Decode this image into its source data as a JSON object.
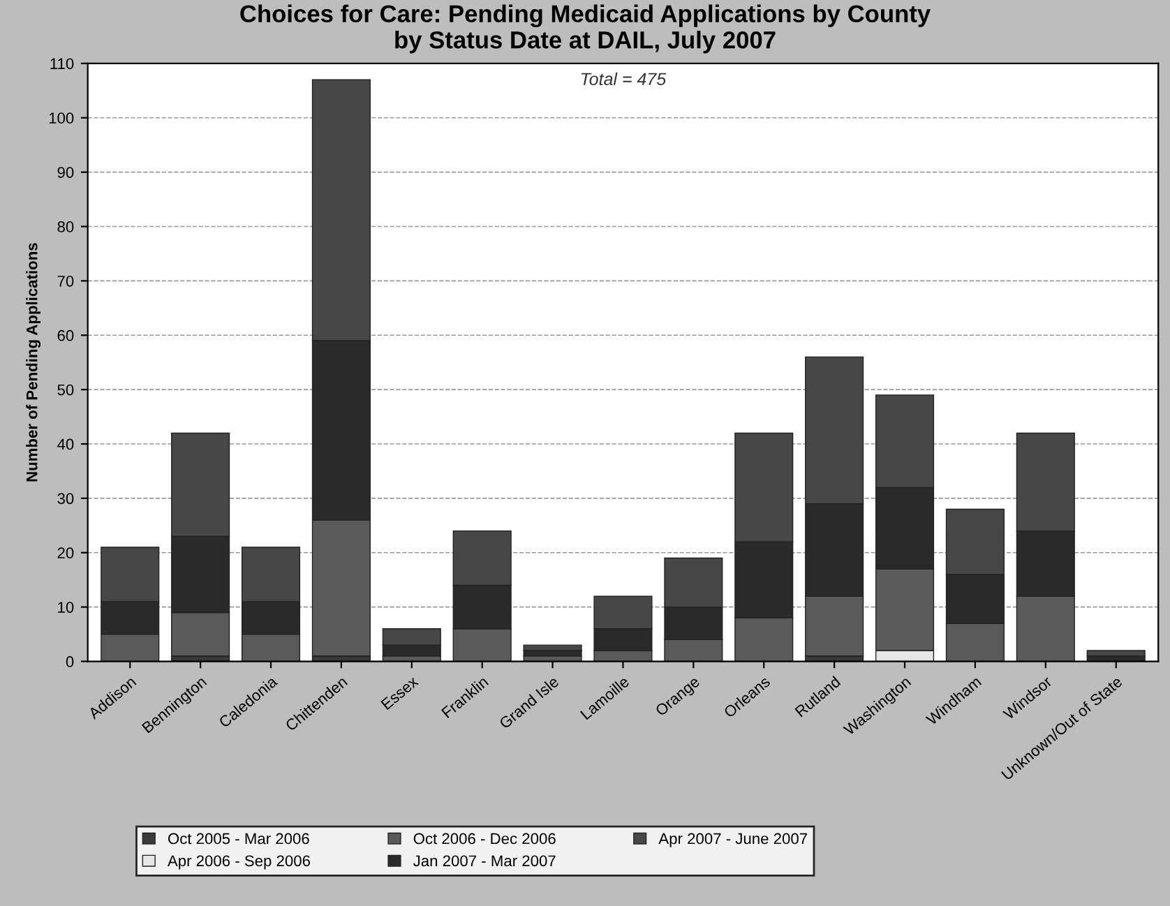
{
  "chart_data": {
    "type": "bar",
    "stacked": true,
    "title": "Choices for Care: Pending Medicaid Applications by County\nby Status Date at DAIL, July 2007",
    "ylabel": "Number of Pending Applications",
    "annotations": [
      "Total = 475"
    ],
    "categories": [
      "Addison",
      "Bennington",
      "Caledonia",
      "Chittenden",
      "Essex",
      "Franklin",
      "Grand Isle",
      "Lamoille",
      "Orange",
      "Orleans",
      "Rutland",
      "Washington",
      "Windham",
      "Windsor",
      "Unknown/Out of State"
    ],
    "series": [
      {
        "name": "Oct 2005 - Mar 2006",
        "color": "#3a3a3a",
        "values": [
          0,
          1,
          0,
          1,
          0,
          0,
          0,
          0,
          0,
          0,
          1,
          0,
          0,
          0,
          0
        ]
      },
      {
        "name": "Apr 2006 - Sep 2006",
        "color": "#e6e6e6",
        "values": [
          0,
          0,
          0,
          0,
          0,
          0,
          0,
          0,
          0,
          0,
          0,
          2,
          0,
          0,
          0
        ]
      },
      {
        "name": "Oct 2006 - Dec 2006",
        "color": "#5a5a5a",
        "values": [
          5,
          8,
          5,
          25,
          1,
          6,
          1,
          2,
          4,
          8,
          11,
          15,
          7,
          12,
          0
        ]
      },
      {
        "name": "Jan 2007 - Mar 2007",
        "color": "#2a2a2a",
        "values": [
          6,
          14,
          6,
          33,
          2,
          8,
          1,
          4,
          6,
          14,
          17,
          15,
          9,
          12,
          1
        ]
      },
      {
        "name": "Apr 2007 - June 2007",
        "color": "#474747",
        "values": [
          10,
          19,
          10,
          48,
          3,
          10,
          1,
          6,
          9,
          20,
          27,
          17,
          12,
          18,
          1
        ]
      }
    ],
    "ylim": [
      0,
      110
    ],
    "yticks": [
      0,
      10,
      20,
      30,
      40,
      50,
      60,
      70,
      80,
      90,
      100,
      110
    ],
    "grid": "y",
    "legend": "bottom"
  }
}
